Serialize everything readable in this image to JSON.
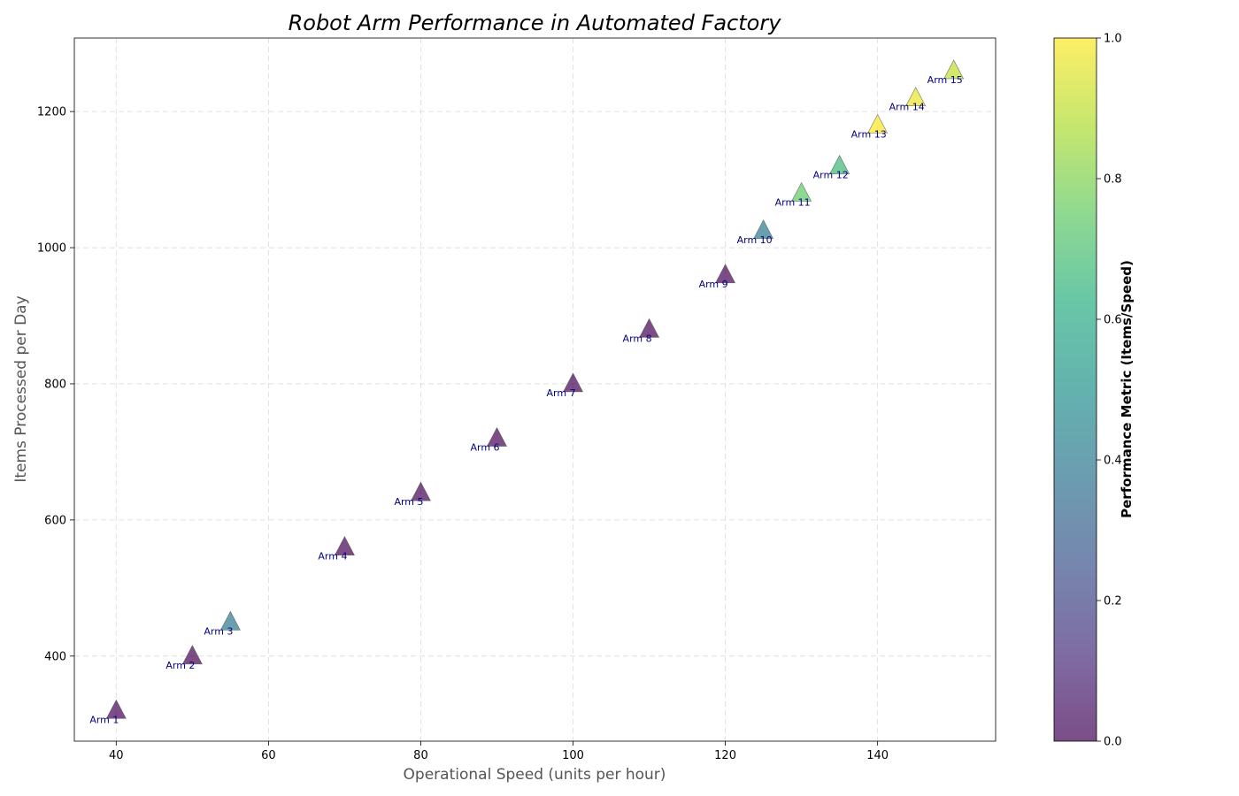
{
  "chart_data": {
    "type": "scatter",
    "title": "Robot Arm Performance in Automated Factory",
    "xlabel": "Operational Speed (units per hour)",
    "ylabel": "Items Processed per Day",
    "xlim": [
      34.5,
      155.5
    ],
    "ylim": [
      275,
      1308
    ],
    "xticks": [
      "40",
      "60",
      "80",
      "100",
      "120",
      "140"
    ],
    "xtick_values": [
      40,
      60,
      80,
      100,
      120,
      140
    ],
    "yticks": [
      "400",
      "600",
      "800",
      "1000",
      "1200"
    ],
    "ytick_values": [
      400,
      600,
      800,
      1000,
      1200
    ],
    "grid": true,
    "marker": "triangle",
    "colormap": "viridis",
    "colorbar": {
      "label": "Performance Metric (Items/Speed)",
      "range": [
        0.0,
        1.0
      ],
      "ticks": [
        "0.0",
        "0.2",
        "0.4",
        "0.6",
        "0.8",
        "1.0"
      ],
      "tick_values": [
        0.0,
        0.2,
        0.4,
        0.6,
        0.8,
        1.0
      ]
    },
    "points": [
      {
        "label": "Arm 1",
        "x": 40,
        "y": 320,
        "metric": 0.0
      },
      {
        "label": "Arm 2",
        "x": 50,
        "y": 400,
        "metric": 0.0
      },
      {
        "label": "Arm 3",
        "x": 55,
        "y": 450,
        "metric": 0.4
      },
      {
        "label": "Arm 4",
        "x": 70,
        "y": 560,
        "metric": 0.0
      },
      {
        "label": "Arm 5",
        "x": 80,
        "y": 640,
        "metric": 0.0
      },
      {
        "label": "Arm 6",
        "x": 90,
        "y": 720,
        "metric": 0.0
      },
      {
        "label": "Arm 7",
        "x": 100,
        "y": 800,
        "metric": 0.0
      },
      {
        "label": "Arm 8",
        "x": 110,
        "y": 880,
        "metric": 0.0
      },
      {
        "label": "Arm 9",
        "x": 120,
        "y": 960,
        "metric": 0.0
      },
      {
        "label": "Arm 10",
        "x": 125,
        "y": 1025,
        "metric": 0.4
      },
      {
        "label": "Arm 11",
        "x": 130,
        "y": 1080,
        "metric": 0.75
      },
      {
        "label": "Arm 12",
        "x": 135,
        "y": 1120,
        "metric": 0.67
      },
      {
        "label": "Arm 13",
        "x": 140,
        "y": 1180,
        "metric": 1.0
      },
      {
        "label": "Arm 14",
        "x": 145,
        "y": 1220,
        "metric": 0.97
      },
      {
        "label": "Arm 15",
        "x": 150,
        "y": 1260,
        "metric": 0.9
      }
    ]
  }
}
